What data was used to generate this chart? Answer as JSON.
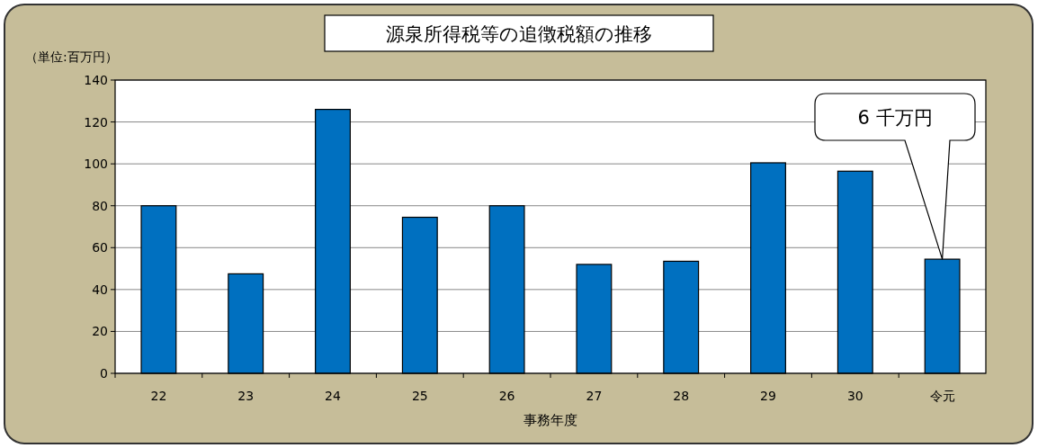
{
  "chart_data": {
    "type": "bar",
    "title": "源泉所得税等の追徴税額の推移",
    "ylabel": "（単位:百万円）",
    "xlabel": "事務年度",
    "categories": [
      "22",
      "23",
      "24",
      "25",
      "26",
      "27",
      "28",
      "29",
      "30",
      "令元"
    ],
    "values": [
      80,
      47.5,
      126,
      74.5,
      80,
      52,
      53.5,
      100.5,
      96.5,
      54.5
    ],
    "color": "#0070c0",
    "ylim": [
      0,
      140
    ],
    "yticks": [
      0,
      20,
      40,
      60,
      80,
      100,
      120,
      140
    ],
    "grid": "y",
    "annotations": [
      "6 千万円"
    ]
  }
}
